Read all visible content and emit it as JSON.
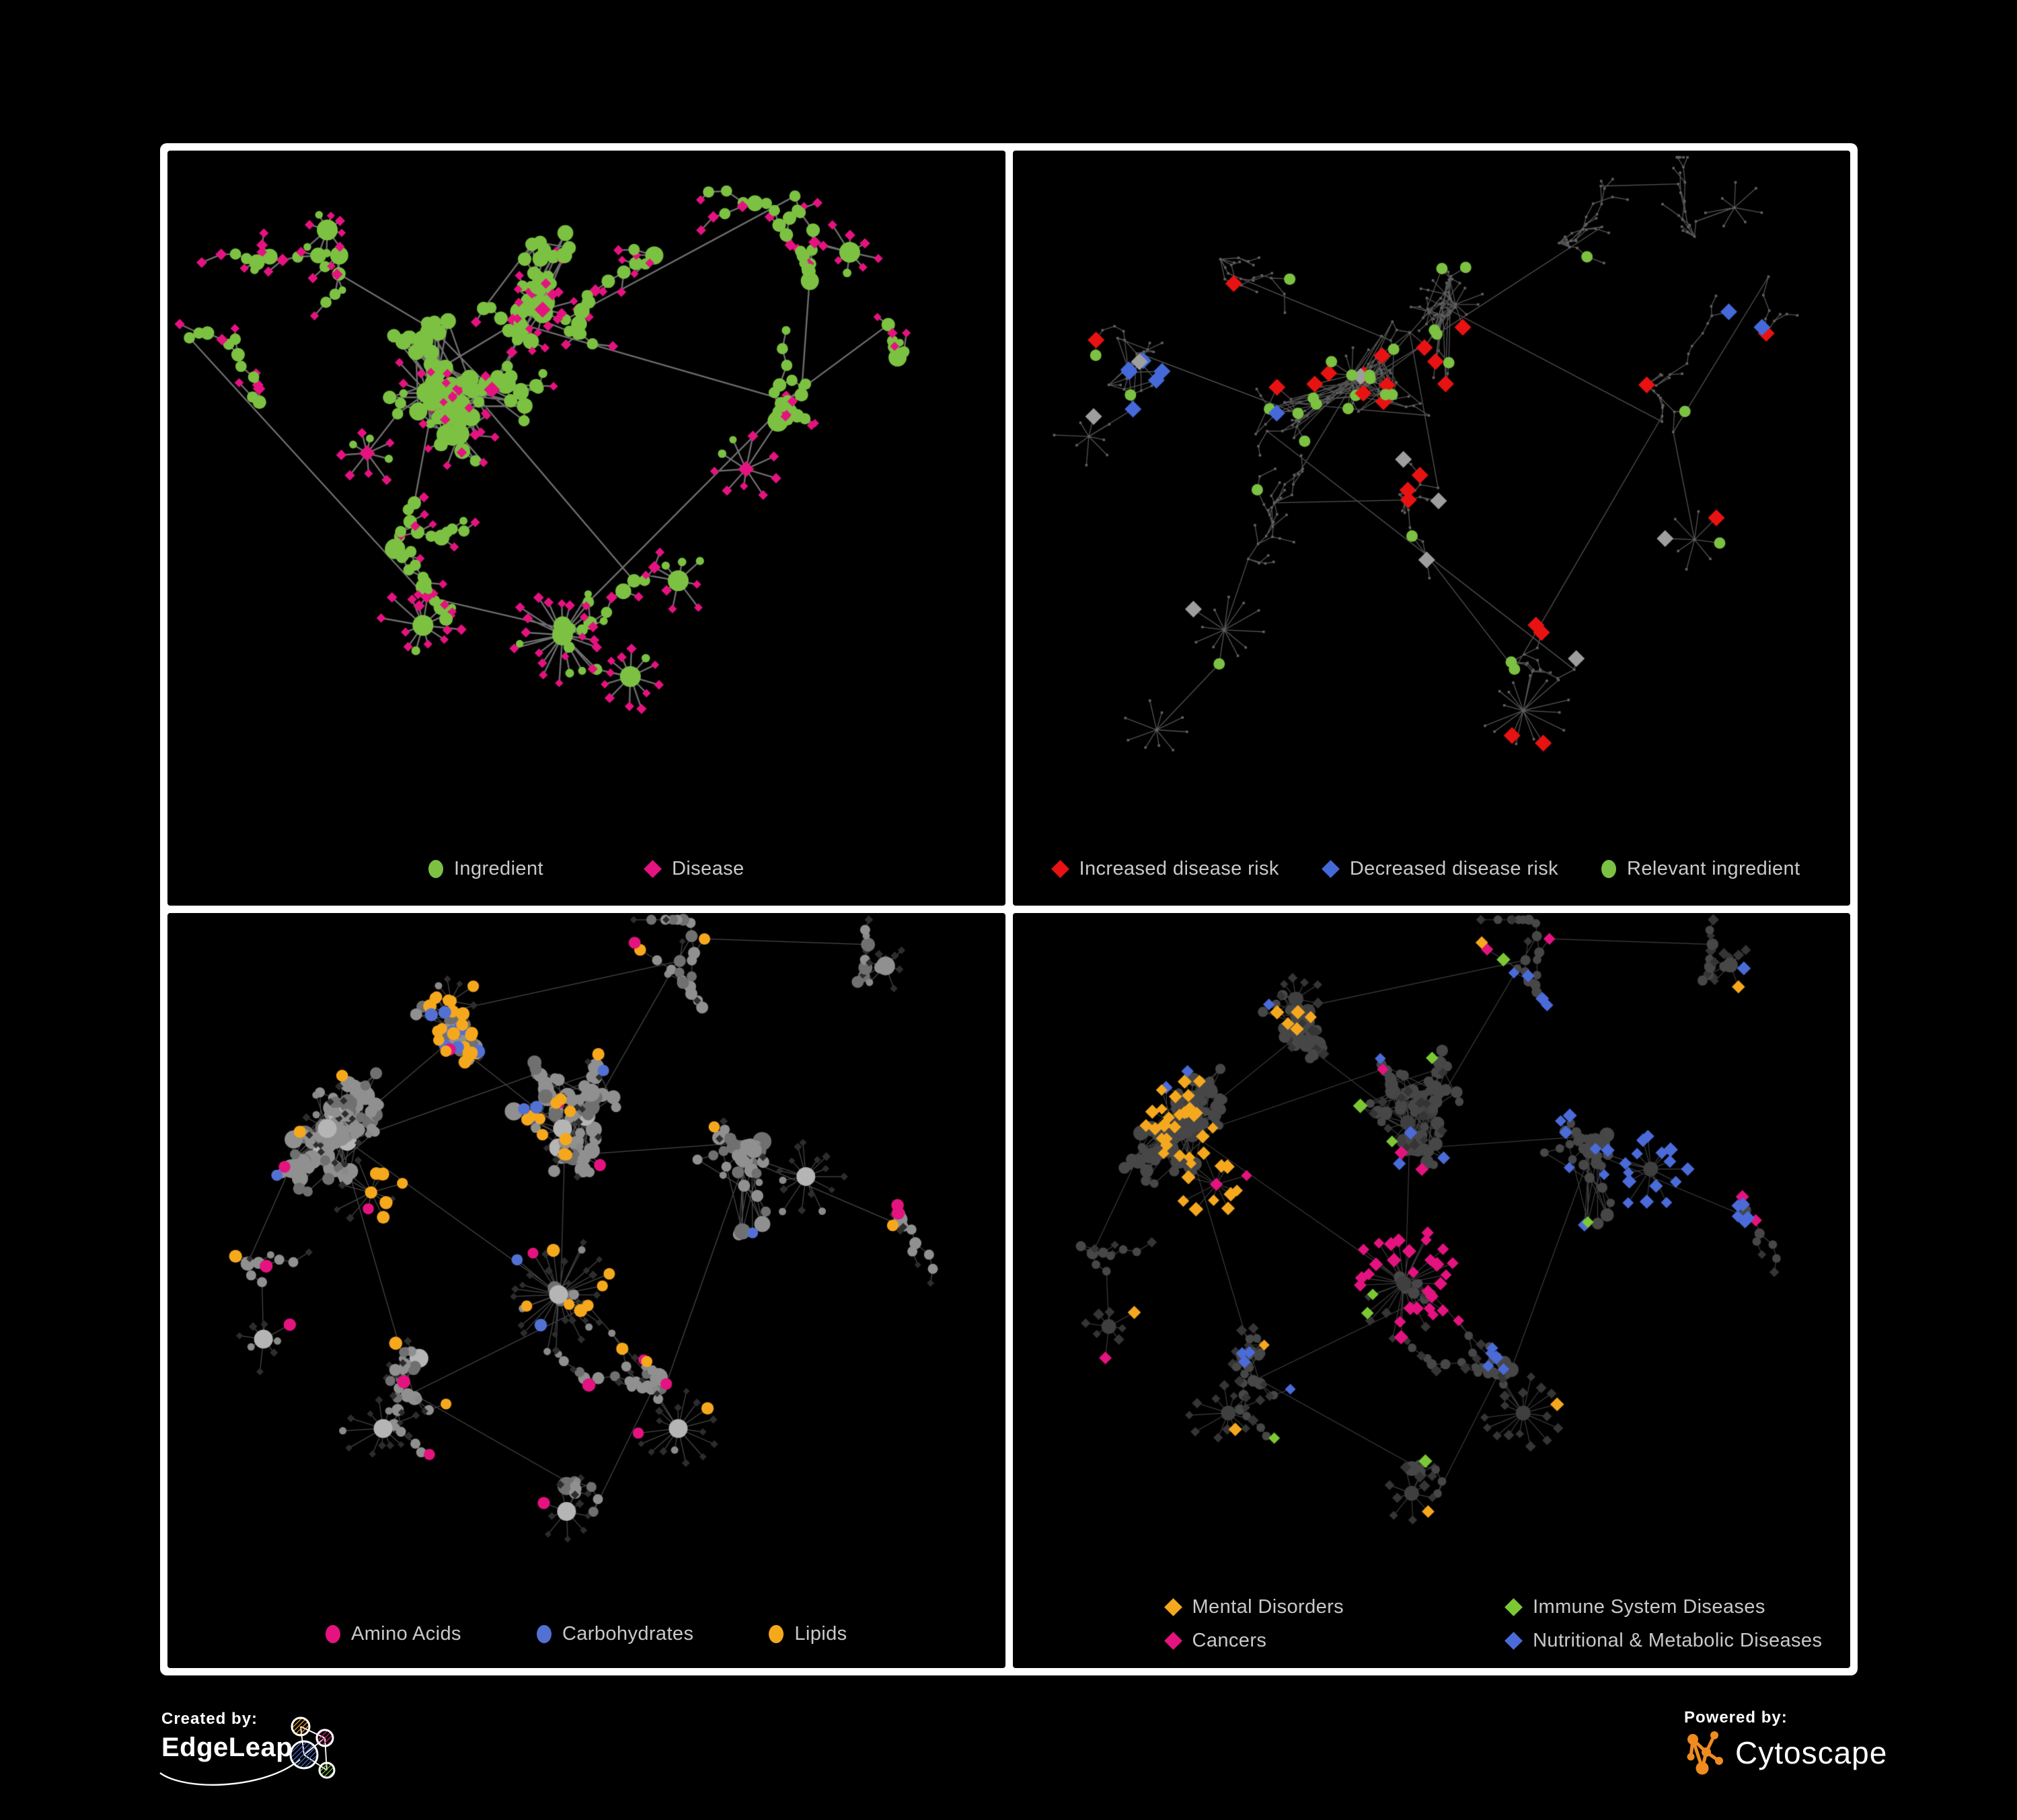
{
  "panels": [
    {
      "legend": [
        {
          "label": "Ingredient",
          "color": "#7cc142",
          "shape": "circle"
        },
        {
          "label": "Disease",
          "color": "#e4137f",
          "shape": "diamond"
        }
      ]
    },
    {
      "legend": [
        {
          "label": "Increased disease risk",
          "color": "#e91212",
          "shape": "diamond"
        },
        {
          "label": "Decreased disease risk",
          "color": "#4569d8",
          "shape": "diamond"
        },
        {
          "label": "Relevant ingredient",
          "color": "#7cc142",
          "shape": "circle"
        }
      ]
    },
    {
      "legend": [
        {
          "label": "Amino Acids",
          "color": "#e4137f",
          "shape": "circle"
        },
        {
          "label": "Carbohydrates",
          "color": "#5271d3",
          "shape": "circle"
        },
        {
          "label": "Lipids",
          "color": "#f6a81d",
          "shape": "circle"
        }
      ]
    },
    {
      "legend": [
        {
          "label": "Mental Disorders",
          "color": "#f5a81e",
          "shape": "diamond"
        },
        {
          "label": "Immune System Diseases",
          "color": "#7cc834",
          "shape": "diamond"
        },
        {
          "label": "Cancers",
          "color": "#e4137f",
          "shape": "diamond"
        },
        {
          "label": "Nutritional & Metabolic Diseases",
          "color": "#4b6bd9",
          "shape": "diamond"
        }
      ]
    }
  ],
  "footer": {
    "created_by": "Created by:",
    "edgeleap": "EdgeLeap",
    "powered_by": "Powered by:",
    "cytoscape": "Cytoscape"
  },
  "style": {
    "background": "#000000",
    "panel_border": "#ffffff",
    "legend_text": "#c9c9c9",
    "neutral_gray_diamond": "#9e9e9e",
    "dim_node": "#616161",
    "muted_leaf_diamond": "#2d2d2d",
    "muted_circle": "#8f8f8f",
    "cytoscape_orange": "#ef8b1f",
    "edgeleap_orange": "#f0a32a",
    "edgeleap_magenta": "#c9236f",
    "edgeleap_blue": "#4a6cc3",
    "edgeleap_green": "#7cc142"
  }
}
